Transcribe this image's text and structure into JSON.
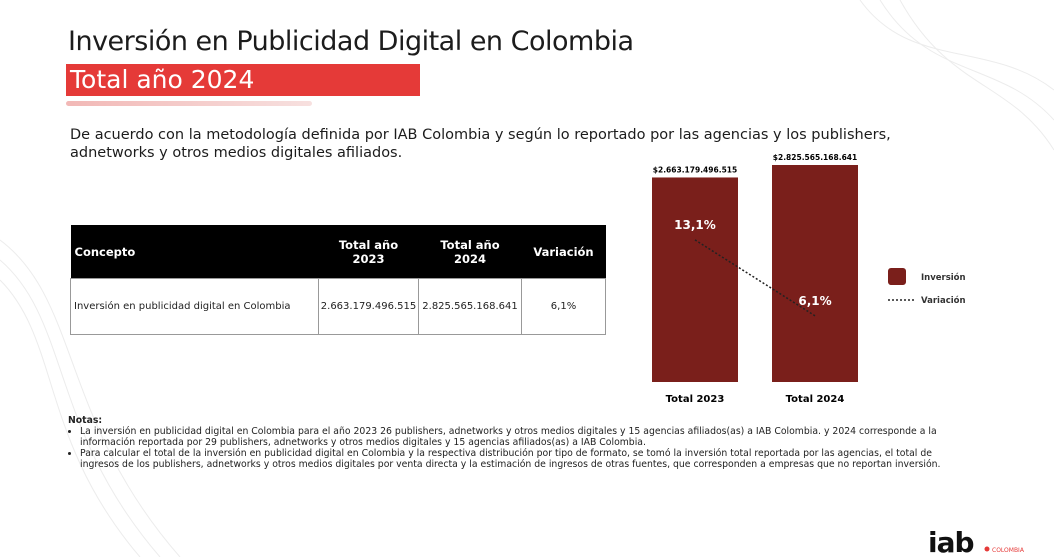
{
  "header": {
    "title": "Inversión en Publicidad Digital en Colombia",
    "subtitle": "Total año 2024"
  },
  "intro": "De acuerdo con la metodología definida por IAB Colombia y según lo reportado por las agencias y los publishers, adnetworks y otros medios digitales afiliados.",
  "table": {
    "columns": [
      "Concepto",
      "Total año 2023",
      "Total año 2024",
      "Variación"
    ],
    "rows": [
      [
        "Inversión en publicidad digital en Colombia",
        "2.663.179.496.515",
        "2.825.565.168.641",
        "6,1%"
      ]
    ]
  },
  "chart_data": {
    "type": "bar",
    "categories": [
      "Total 2023",
      "Total 2024"
    ],
    "series": [
      {
        "name": "Inversión",
        "color": "#7a1f1b",
        "values": [
          2663179496515,
          2825565168641
        ],
        "value_labels": [
          "$2.663.179.496.515",
          "$2.825.565.168.641"
        ]
      },
      {
        "name": "Variación",
        "type": "line",
        "axis": "y2",
        "color": "#222222",
        "values": [
          13.1,
          6.1
        ],
        "value_labels": [
          "13,1%",
          "6,1%"
        ]
      }
    ],
    "y2lim": [
      0,
      20
    ],
    "legend": "right"
  },
  "notes": {
    "title": "Notas:",
    "items": [
      "La inversión en publicidad digital en Colombia para el año 2023 26 publishers, adnetworks y otros medios digitales y 15 agencias afiliados(as) a IAB Colombia. y 2024 corresponde a la información reportada por 29 publishers, adnetworks y otros medios digitales y 15 agencias afiliados(as) a IAB Colombia.",
      "Para calcular el total de la inversión en publicidad digital en Colombia y la respectiva distribución por tipo de formato, se tomó la inversión total reportada por las agencias, el total de ingresos de los publishers, adnetworks y otros medios digitales por venta directa y la estimación de ingresos de otras fuentes, que corresponden a empresas que no reportan inversión."
    ]
  },
  "logo": {
    "name": "iab",
    "sub": "COLOMBIA"
  }
}
